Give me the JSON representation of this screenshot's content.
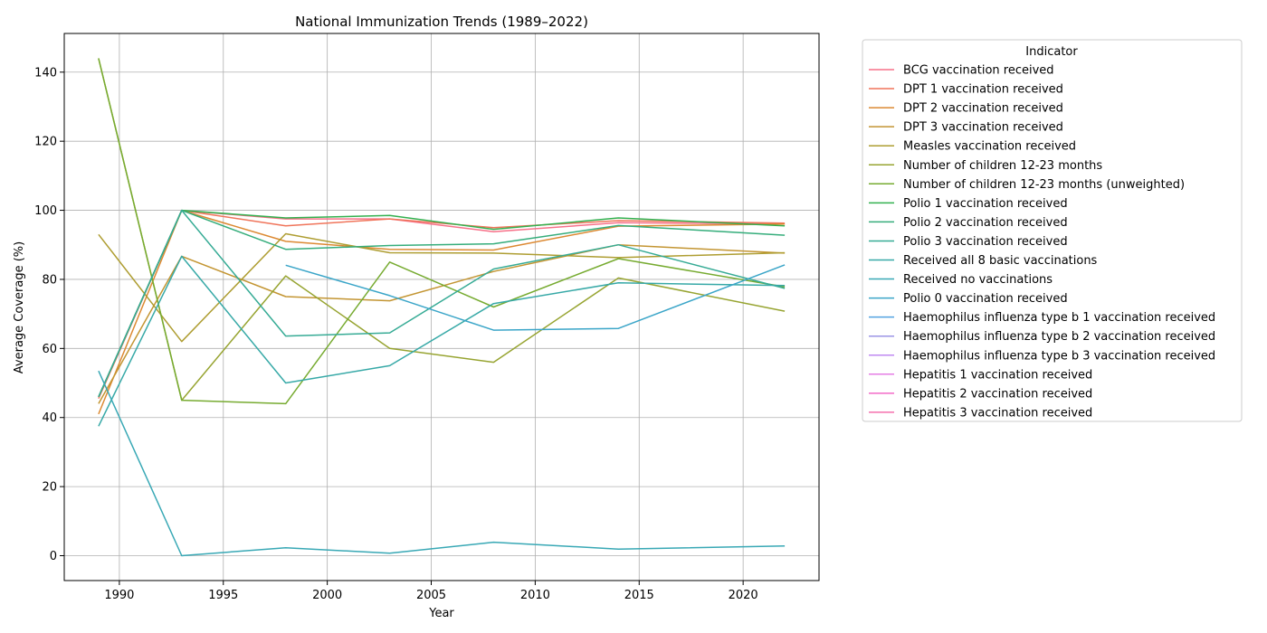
{
  "chart_data": {
    "type": "line",
    "title": "National Immunization Trends (1989–2022)",
    "xlabel": "Year",
    "ylabel": "Average Coverage (%)",
    "xlim": [
      1987.35,
      2023.65
    ],
    "ylim": [
      -7.2,
      151.2
    ],
    "xticks": [
      1990,
      1995,
      2000,
      2005,
      2010,
      2015,
      2020
    ],
    "yticks": [
      0,
      20,
      40,
      60,
      80,
      100,
      120,
      140
    ],
    "grid": true,
    "legend_title": "Indicator",
    "legend_position": "outside right",
    "series": [
      {
        "name": "BCG vaccination received",
        "color": "#f77189",
        "points": [
          [
            1989,
            46
          ],
          [
            1993,
            100
          ],
          [
            1998,
            97.5
          ],
          [
            2003,
            97.5
          ],
          [
            2008,
            93.8
          ],
          [
            2014,
            96.4
          ],
          [
            2022,
            96.1
          ]
        ]
      },
      {
        "name": "DPT 1 vaccination received",
        "color": "#f0745a",
        "points": [
          [
            1989,
            45.5
          ],
          [
            1993,
            100
          ],
          [
            1998,
            95.5
          ],
          [
            2003,
            97.5
          ],
          [
            2008,
            95.0
          ],
          [
            2014,
            97.0
          ],
          [
            2022,
            96.3
          ]
        ]
      },
      {
        "name": "DPT 2 vaccination received",
        "color": "#dc8932",
        "points": [
          [
            1989,
            41
          ],
          [
            1993,
            100
          ],
          [
            1998,
            91
          ],
          [
            2003,
            88.7
          ],
          [
            2008,
            88.5
          ],
          [
            2014,
            95.4
          ],
          [
            2022,
            96.0
          ]
        ]
      },
      {
        "name": "DPT 3 vaccination received",
        "color": "#c39532",
        "points": [
          [
            1989,
            44
          ],
          [
            1993,
            86.7
          ],
          [
            1998,
            75
          ],
          [
            2003,
            73.8
          ],
          [
            2008,
            82.3
          ],
          [
            2014,
            90
          ],
          [
            2022,
            87.6
          ]
        ]
      },
      {
        "name": "Measles vaccination received",
        "color": "#ae9d31",
        "points": [
          [
            1989,
            93
          ],
          [
            1993,
            62
          ],
          [
            1998,
            93.2
          ],
          [
            2003,
            87.7
          ],
          [
            2008,
            87.6
          ],
          [
            2014,
            86.3
          ],
          [
            2022,
            87.7
          ]
        ]
      },
      {
        "name": "Number of children 12-23 months",
        "color": "#97a431",
        "points": [
          [
            1989,
            144
          ],
          [
            1993,
            45
          ],
          [
            1998,
            81
          ],
          [
            2003,
            60
          ],
          [
            2008,
            56
          ],
          [
            2014,
            80.4
          ],
          [
            2022,
            70.8
          ]
        ]
      },
      {
        "name": "Number of children 12-23 months (unweighted)",
        "color": "#77ab31",
        "points": [
          [
            1989,
            144
          ],
          [
            1993,
            45
          ],
          [
            1998,
            44
          ],
          [
            2003,
            85
          ],
          [
            2008,
            72
          ],
          [
            2014,
            86
          ],
          [
            2022,
            77.8
          ]
        ]
      },
      {
        "name": "Polio 1 vaccination received",
        "color": "#33b04f",
        "points": [
          [
            1989,
            46
          ],
          [
            1993,
            100
          ],
          [
            1998,
            97.8
          ],
          [
            2003,
            98.5
          ],
          [
            2008,
            94.5
          ],
          [
            2014,
            97.8
          ],
          [
            2022,
            95.5
          ]
        ]
      },
      {
        "name": "Polio 2 vaccination received",
        "color": "#35ad7b",
        "points": [
          [
            1989,
            46
          ],
          [
            1993,
            100
          ],
          [
            1998,
            88.7
          ],
          [
            2003,
            89.8
          ],
          [
            2008,
            90.3
          ],
          [
            2014,
            95.6
          ],
          [
            2022,
            92.8
          ]
        ]
      },
      {
        "name": "Polio 3 vaccination received",
        "color": "#36ab95",
        "points": [
          [
            1989,
            46
          ],
          [
            1993,
            100
          ],
          [
            1998,
            63.6
          ],
          [
            2003,
            64.5
          ],
          [
            2008,
            83
          ],
          [
            2014,
            90
          ],
          [
            2022,
            77.4
          ]
        ]
      },
      {
        "name": "Received all 8 basic vaccinations",
        "color": "#37a9a7",
        "points": [
          [
            1989,
            37.5
          ],
          [
            1993,
            86.7
          ],
          [
            1998,
            50
          ],
          [
            2003,
            55
          ],
          [
            2008,
            73
          ],
          [
            2014,
            79
          ],
          [
            2022,
            78.2
          ]
        ]
      },
      {
        "name": "Received no vaccinations",
        "color": "#38a8b5",
        "points": [
          [
            1989,
            53.5
          ],
          [
            1993,
            0
          ],
          [
            1998,
            2.3
          ],
          [
            2003,
            0.7
          ],
          [
            2008,
            3.9
          ],
          [
            2014,
            1.9
          ],
          [
            2022,
            2.8
          ]
        ]
      },
      {
        "name": "Polio 0 vaccination received",
        "color": "#3aa5c8",
        "points": [
          [
            1998,
            84.1
          ],
          [
            2003,
            75.3
          ],
          [
            2008,
            65.3
          ],
          [
            2014,
            65.8
          ],
          [
            2022,
            84.2
          ]
        ]
      },
      {
        "name": "Haemophilus influenza type b 1 vaccination received",
        "color": "#52a2e0",
        "points": []
      },
      {
        "name": "Haemophilus influenza type b 2 vaccination received",
        "color": "#9b94e6",
        "points": []
      },
      {
        "name": "Haemophilus influenza type b 3 vaccination received",
        "color": "#c08af2",
        "points": []
      },
      {
        "name": "Hepatitis 1 vaccination received",
        "color": "#e47ee5",
        "points": []
      },
      {
        "name": "Hepatitis 2 vaccination received",
        "color": "#f269c8",
        "points": []
      },
      {
        "name": "Hepatitis 3 vaccination received",
        "color": "#f56fad",
        "points": []
      }
    ]
  }
}
